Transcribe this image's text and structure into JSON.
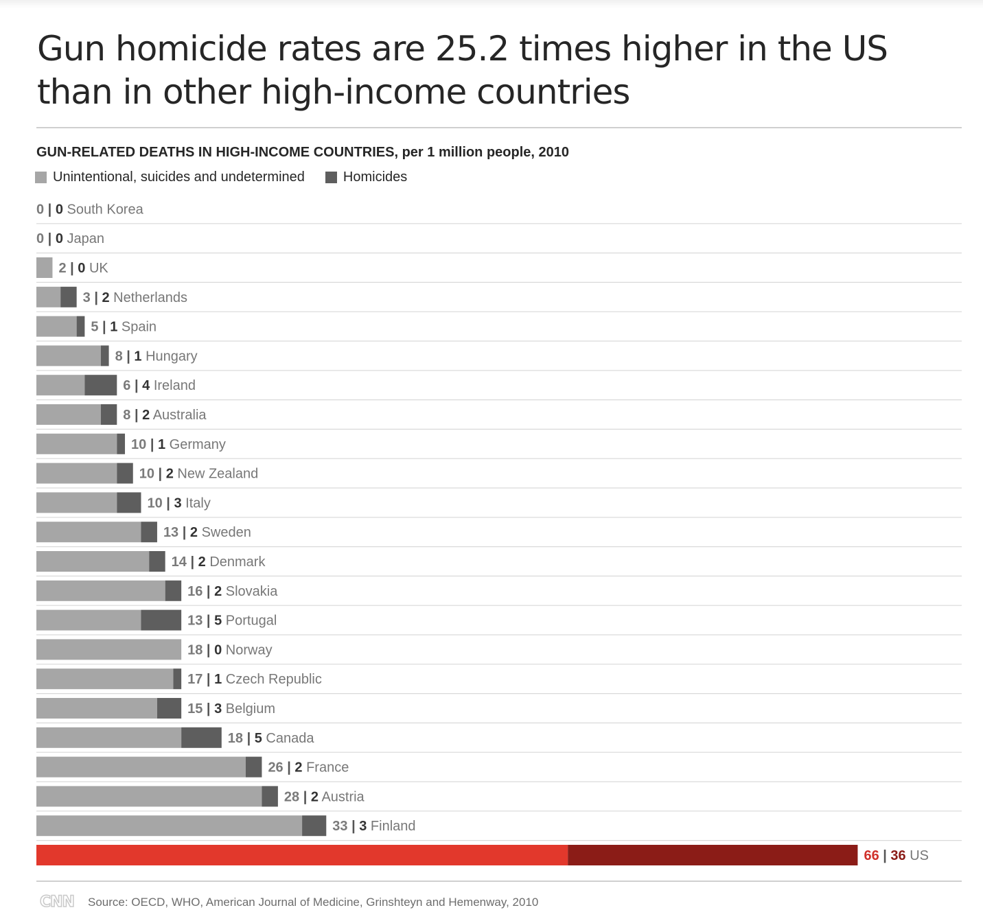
{
  "title": "Gun homicide rates are 25.2 times higher in the US than in other high-income countries",
  "subtitle": {
    "bold": "GUN-RELATED DEATHS IN HIGH-INCOME COUNTRIES,",
    "rest": " per 1 million people, 2010"
  },
  "source": "Source: OECD, WHO, American Journal of Medicine, Grinshteyn and Hemenway, 2010",
  "logo": "CNN",
  "colors": {
    "other": "#a6a6a6",
    "homicide": "#5e5e5e",
    "us_other": "#e2382c",
    "us_homicide": "#8b1c17",
    "us_text": "#d0312a",
    "us_homicide_text": "#8b1c17",
    "row_rule": "#d9d9d9"
  },
  "chart_data": {
    "type": "bar",
    "stacked": true,
    "orientation": "horizontal",
    "title": "GUN-RELATED DEATHS IN HIGH-INCOME COUNTRIES, per 1 million people, 2010",
    "categories": [
      "South Korea",
      "Japan",
      "UK",
      "Netherlands",
      "Spain",
      "Hungary",
      "Ireland",
      "Australia",
      "Germany",
      "New Zealand",
      "Italy",
      "Sweden",
      "Denmark",
      "Slovakia",
      "Portugal",
      "Norway",
      "Czech Republic",
      "Belgium",
      "Canada",
      "France",
      "Austria",
      "Finland",
      "US"
    ],
    "series": [
      {
        "name": "Unintentional, suicides and undetermined",
        "values": [
          0,
          0,
          2,
          3,
          5,
          8,
          6,
          8,
          10,
          10,
          10,
          13,
          14,
          16,
          13,
          18,
          17,
          15,
          18,
          26,
          28,
          33,
          66
        ]
      },
      {
        "name": "Homicides",
        "values": [
          0,
          0,
          0,
          2,
          1,
          1,
          4,
          2,
          1,
          2,
          3,
          2,
          2,
          2,
          5,
          0,
          1,
          3,
          5,
          2,
          2,
          3,
          36
        ]
      }
    ],
    "highlight": "US",
    "legend_position": "top-left",
    "grid": false
  }
}
